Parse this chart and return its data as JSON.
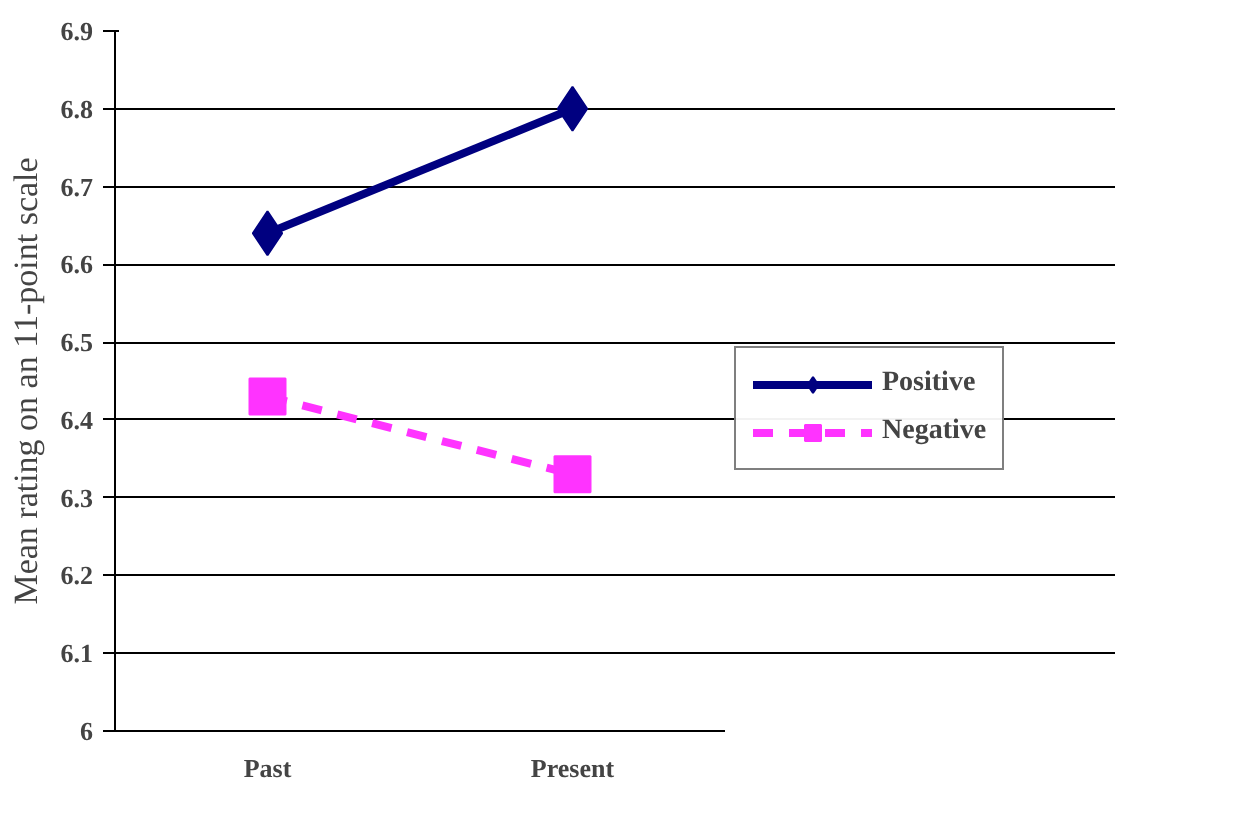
{
  "chart_data": {
    "type": "line",
    "ylabel": "Mean rating on an 11-point scale",
    "categories": [
      "Past",
      "Present"
    ],
    "series": [
      {
        "name": "Positive",
        "color": "#000080",
        "values": [
          6.64,
          6.8
        ],
        "marker": "diamond",
        "line_style": "solid"
      },
      {
        "name": "Negative",
        "color": "#ff33ff",
        "values": [
          6.43,
          6.33
        ],
        "marker": "square",
        "line_style": "dashed"
      }
    ],
    "ylim": [
      6,
      6.9
    ],
    "yticks": [
      6,
      6.1,
      6.2,
      6.3,
      6.4,
      6.5,
      6.6,
      6.7,
      6.8,
      6.9
    ],
    "grid": "y",
    "legend": "right"
  }
}
